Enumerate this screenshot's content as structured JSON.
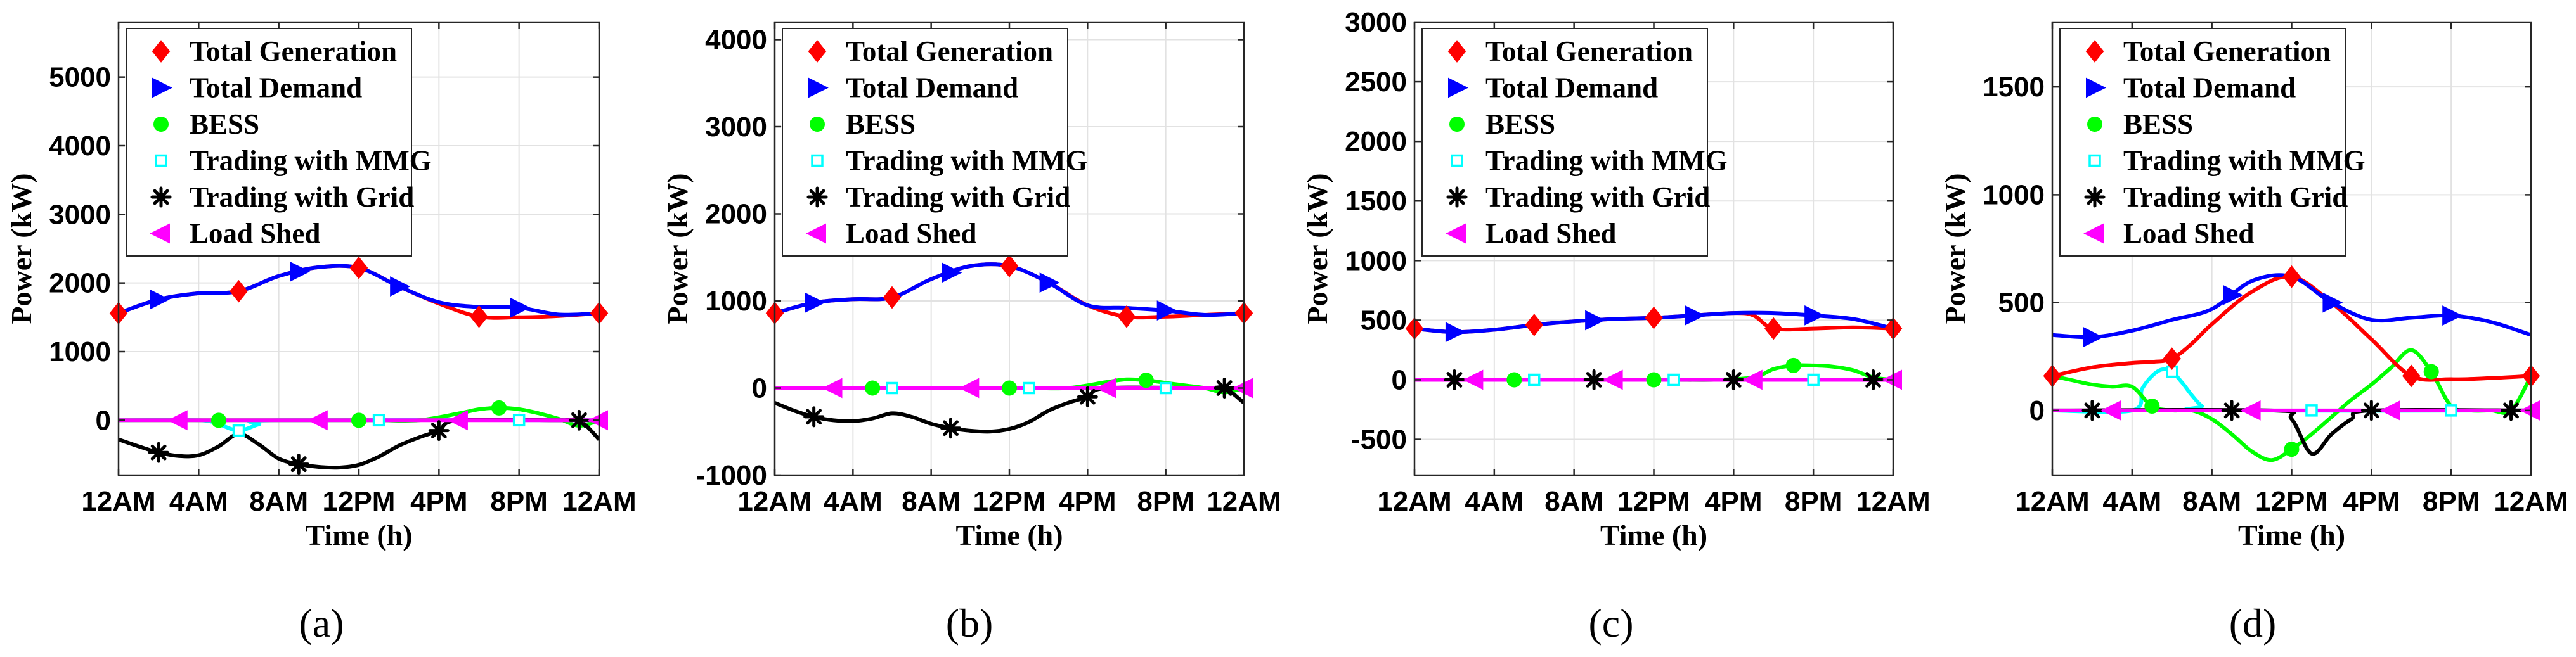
{
  "figure": {
    "captions": [
      "(a)",
      "(b)",
      "(c)",
      "(d)"
    ]
  },
  "colors": {
    "generation": "#ff0000",
    "demand": "#0000ff",
    "bess": "#00ff00",
    "mmg": "#00ffff",
    "grid": "#000000",
    "loadshed": "#ff00ff"
  },
  "chart_data": [
    {
      "type": "line",
      "panel": "(a)",
      "xlabel": "Time (h)",
      "ylabel": "Power (kW)",
      "xlim": [
        0,
        24
      ],
      "ylim": [
        -800,
        5800
      ],
      "yticks": [
        0,
        1000,
        2000,
        3000,
        4000,
        5000
      ],
      "xticks": [
        0,
        4,
        8,
        12,
        16,
        20,
        24
      ],
      "xtick_labels": [
        "12AM",
        "4AM",
        "8AM",
        "12PM",
        "4PM",
        "8PM",
        "12AM"
      ],
      "legend_position": "top-left",
      "grid": true,
      "series": [
        {
          "name": "Total Generation",
          "key": "generation",
          "marker": "diamond",
          "x": [
            0,
            2,
            4,
            6,
            8,
            10,
            12,
            14,
            16,
            18,
            20,
            22,
            24
          ],
          "y": [
            1560,
            1760,
            1850,
            1880,
            2100,
            2230,
            2220,
            1950,
            1700,
            1510,
            1500,
            1520,
            1560
          ],
          "marker_x": [
            0,
            6,
            12,
            18,
            24
          ]
        },
        {
          "name": "Total Demand",
          "key": "demand",
          "marker": "triangle-right",
          "x": [
            0,
            2,
            4,
            6,
            8,
            10,
            12,
            14,
            16,
            18,
            20,
            22,
            24
          ],
          "y": [
            1560,
            1760,
            1850,
            1880,
            2100,
            2230,
            2220,
            1950,
            1720,
            1650,
            1640,
            1540,
            1560
          ],
          "marker_x": [
            2,
            9,
            14,
            20
          ]
        },
        {
          "name": "BESS",
          "key": "bess",
          "marker": "circle",
          "x": [
            0,
            3,
            5,
            7,
            9,
            11,
            13,
            15,
            17,
            18,
            19,
            20,
            21,
            22,
            23,
            24
          ],
          "y": [
            0,
            0,
            0,
            0,
            0,
            0,
            0,
            0,
            100,
            160,
            180,
            160,
            100,
            20,
            -80,
            0
          ],
          "marker_x": [
            5,
            12,
            19
          ]
        },
        {
          "name": "Trading with MMG",
          "key": "mmg",
          "marker": "square",
          "x": [
            0,
            4,
            5,
            6,
            7,
            8,
            24
          ],
          "y": [
            0,
            0,
            -60,
            -150,
            -60,
            0,
            0
          ],
          "marker_x": [
            6,
            13,
            20
          ]
        },
        {
          "name": "Trading with Grid",
          "key": "grid",
          "marker": "asterisk",
          "x": [
            0,
            1,
            2,
            3,
            4,
            5,
            6,
            7,
            8,
            9,
            10,
            11,
            12,
            13,
            14,
            15,
            16,
            17,
            22,
            23,
            24
          ],
          "y": [
            -280,
            -380,
            -470,
            -520,
            -510,
            -380,
            -200,
            -350,
            -560,
            -640,
            -680,
            -690,
            -650,
            -530,
            -370,
            -250,
            -150,
            0,
            0,
            0,
            -280
          ],
          "marker_x": [
            2,
            9,
            16,
            23
          ]
        },
        {
          "name": "Load Shed",
          "key": "loadshed",
          "marker": "triangle-left",
          "x": [
            0,
            24
          ],
          "y": [
            0,
            0
          ],
          "marker_x": [
            3,
            10,
            17,
            24
          ]
        }
      ]
    },
    {
      "type": "line",
      "panel": "(b)",
      "xlabel": "Time (h)",
      "ylabel": "Power (kW)",
      "xlim": [
        0,
        24
      ],
      "ylim": [
        -1000,
        4200
      ],
      "yticks": [
        -1000,
        0,
        1000,
        2000,
        3000,
        4000
      ],
      "xticks": [
        0,
        4,
        8,
        12,
        16,
        20,
        24
      ],
      "xtick_labels": [
        "12AM",
        "4AM",
        "8AM",
        "12PM",
        "4PM",
        "8PM",
        "12AM"
      ],
      "legend_position": "top-left",
      "grid": true,
      "series": [
        {
          "name": "Total Generation",
          "key": "generation",
          "marker": "diamond",
          "x": [
            0,
            2,
            4,
            6,
            8,
            10,
            12,
            14,
            16,
            18,
            20,
            22,
            24
          ],
          "y": [
            860,
            980,
            1020,
            1040,
            1250,
            1400,
            1400,
            1210,
            950,
            820,
            820,
            840,
            860
          ],
          "marker_x": [
            0,
            6,
            12,
            18,
            24
          ]
        },
        {
          "name": "Total Demand",
          "key": "demand",
          "marker": "triangle-right",
          "x": [
            0,
            2,
            4,
            6,
            8,
            10,
            12,
            14,
            16,
            18,
            20,
            22,
            24
          ],
          "y": [
            860,
            980,
            1020,
            1040,
            1250,
            1400,
            1400,
            1210,
            950,
            920,
            890,
            840,
            860
          ],
          "marker_x": [
            2,
            9,
            14,
            20
          ]
        },
        {
          "name": "BESS",
          "key": "bess",
          "marker": "circle",
          "x": [
            0,
            3,
            5,
            7,
            9,
            11,
            13,
            15,
            17,
            18,
            19,
            20,
            21,
            22,
            23,
            24
          ],
          "y": [
            0,
            0,
            0,
            0,
            0,
            0,
            0,
            0,
            70,
            100,
            90,
            60,
            30,
            0,
            -50,
            0
          ],
          "marker_x": [
            5,
            12,
            19
          ]
        },
        {
          "name": "Trading with MMG",
          "key": "mmg",
          "marker": "square",
          "x": [
            0,
            24
          ],
          "y": [
            0,
            0
          ],
          "marker_x": [
            6,
            13,
            20
          ]
        },
        {
          "name": "Trading with Grid",
          "key": "grid",
          "marker": "asterisk",
          "x": [
            0,
            1,
            2,
            3,
            4,
            5,
            6,
            7,
            8,
            9,
            10,
            11,
            12,
            13,
            14,
            15,
            16,
            17,
            22,
            23,
            24
          ],
          "y": [
            -170,
            -260,
            -330,
            -370,
            -380,
            -350,
            -290,
            -330,
            -410,
            -460,
            -490,
            -500,
            -470,
            -390,
            -260,
            -170,
            -100,
            0,
            0,
            0,
            -170
          ],
          "marker_x": [
            2,
            9,
            16,
            23
          ]
        },
        {
          "name": "Load Shed",
          "key": "loadshed",
          "marker": "triangle-left",
          "x": [
            0,
            24
          ],
          "y": [
            0,
            0
          ],
          "marker_x": [
            3,
            10,
            17,
            24
          ]
        }
      ]
    },
    {
      "type": "line",
      "panel": "(c)",
      "xlabel": "Time (h)",
      "ylabel": "Power (kW)",
      "xlim": [
        0,
        24
      ],
      "ylim": [
        -800,
        3000
      ],
      "yticks": [
        -500,
        0,
        500,
        1000,
        1500,
        2000,
        2500,
        3000
      ],
      "xticks": [
        0,
        4,
        8,
        12,
        16,
        20,
        24
      ],
      "xtick_labels": [
        "12AM",
        "4AM",
        "8AM",
        "12PM",
        "4PM",
        "8PM",
        "12AM"
      ],
      "legend_position": "top-left",
      "grid": true,
      "series": [
        {
          "name": "Total Generation",
          "key": "generation",
          "marker": "diamond",
          "x": [
            0,
            2,
            4,
            6,
            8,
            10,
            12,
            14,
            16,
            17,
            18,
            20,
            22,
            24
          ],
          "y": [
            430,
            400,
            420,
            460,
            490,
            510,
            520,
            540,
            560,
            540,
            430,
            430,
            440,
            430
          ],
          "marker_x": [
            0,
            6,
            12,
            18,
            24
          ]
        },
        {
          "name": "Total Demand",
          "key": "demand",
          "marker": "triangle-right",
          "x": [
            0,
            2,
            4,
            6,
            8,
            10,
            12,
            14,
            16,
            18,
            20,
            22,
            24
          ],
          "y": [
            430,
            400,
            420,
            460,
            490,
            510,
            520,
            540,
            560,
            560,
            540,
            510,
            430
          ],
          "marker_x": [
            2,
            9,
            14,
            20
          ]
        },
        {
          "name": "BESS",
          "key": "bess",
          "marker": "circle",
          "x": [
            0,
            3,
            5,
            7,
            9,
            11,
            13,
            15,
            17,
            18,
            19,
            20,
            21,
            22,
            23,
            24
          ],
          "y": [
            0,
            0,
            0,
            0,
            0,
            0,
            0,
            0,
            20,
            90,
            120,
            120,
            110,
            80,
            20,
            0
          ],
          "marker_x": [
            5,
            12,
            19
          ]
        },
        {
          "name": "Trading with MMG",
          "key": "mmg",
          "marker": "square",
          "x": [
            0,
            24
          ],
          "y": [
            0,
            0
          ],
          "marker_x": [
            6,
            13,
            20
          ]
        },
        {
          "name": "Trading with Grid",
          "key": "grid",
          "marker": "asterisk",
          "x": [
            0,
            24
          ],
          "y": [
            0,
            0
          ],
          "marker_x": [
            2,
            9,
            16,
            23
          ]
        },
        {
          "name": "Load Shed",
          "key": "loadshed",
          "marker": "triangle-left",
          "x": [
            0,
            24
          ],
          "y": [
            0,
            0
          ],
          "marker_x": [
            3,
            10,
            17,
            24
          ]
        }
      ]
    },
    {
      "type": "line",
      "panel": "(d)",
      "xlabel": "Time (h)",
      "ylabel": "Power (kW)",
      "xlim": [
        0,
        24
      ],
      "ylim": [
        -300,
        1800
      ],
      "yticks": [
        0,
        500,
        1000,
        1500
      ],
      "xticks": [
        0,
        4,
        8,
        12,
        16,
        20,
        24
      ],
      "xtick_labels": [
        "12AM",
        "4AM",
        "8AM",
        "12PM",
        "4PM",
        "8PM",
        "12AM"
      ],
      "legend_position": "top-left",
      "grid": true,
      "series": [
        {
          "name": "Total Generation",
          "key": "generation",
          "marker": "diamond",
          "x": [
            0,
            2,
            4,
            5,
            6,
            7,
            8,
            10,
            12,
            14,
            16,
            18,
            20,
            22,
            24
          ],
          "y": [
            160,
            200,
            220,
            225,
            240,
            310,
            400,
            550,
            620,
            500,
            330,
            160,
            145,
            150,
            160
          ],
          "marker_x": [
            0,
            6,
            12,
            18,
            24
          ]
        },
        {
          "name": "Total Demand",
          "key": "demand",
          "marker": "triangle-right",
          "x": [
            0,
            2,
            4,
            6,
            8,
            10,
            12,
            14,
            16,
            18,
            20,
            22,
            24
          ],
          "y": [
            350,
            340,
            370,
            420,
            470,
            600,
            620,
            500,
            420,
            430,
            440,
            410,
            350
          ],
          "marker_x": [
            2,
            9,
            14,
            20
          ]
        },
        {
          "name": "BESS",
          "key": "bess",
          "marker": "circle",
          "x": [
            0,
            1,
            2,
            3,
            4,
            5,
            6,
            7,
            8,
            9,
            10,
            11,
            12,
            13,
            14,
            15,
            16,
            17,
            18,
            19,
            20,
            21,
            22,
            23,
            24
          ],
          "y": [
            160,
            140,
            120,
            110,
            110,
            20,
            0,
            0,
            -40,
            -110,
            -190,
            -230,
            -180,
            -110,
            -30,
            50,
            120,
            200,
            280,
            180,
            20,
            0,
            0,
            0,
            160
          ],
          "marker_x": [
            5,
            12,
            19
          ]
        },
        {
          "name": "Trading with MMG",
          "key": "mmg",
          "marker": "square",
          "x": [
            0,
            4,
            4.5,
            5,
            5.5,
            6,
            6.5,
            7,
            7.5,
            8,
            24
          ],
          "y": [
            0,
            0,
            100,
            160,
            190,
            180,
            130,
            70,
            20,
            0,
            0
          ],
          "marker_x": [
            6,
            13,
            20
          ]
        },
        {
          "name": "Trading with Grid",
          "key": "grid",
          "marker": "asterisk",
          "x": [
            0,
            11,
            12,
            13,
            14,
            15,
            16,
            24
          ],
          "y": [
            0,
            0,
            -40,
            -200,
            -110,
            -40,
            0,
            0
          ],
          "marker_x": [
            2,
            9,
            16,
            23
          ]
        },
        {
          "name": "Load Shed",
          "key": "loadshed",
          "marker": "triangle-left",
          "x": [
            0,
            24
          ],
          "y": [
            0,
            0
          ],
          "marker_x": [
            3,
            10,
            17,
            24
          ]
        }
      ]
    }
  ]
}
